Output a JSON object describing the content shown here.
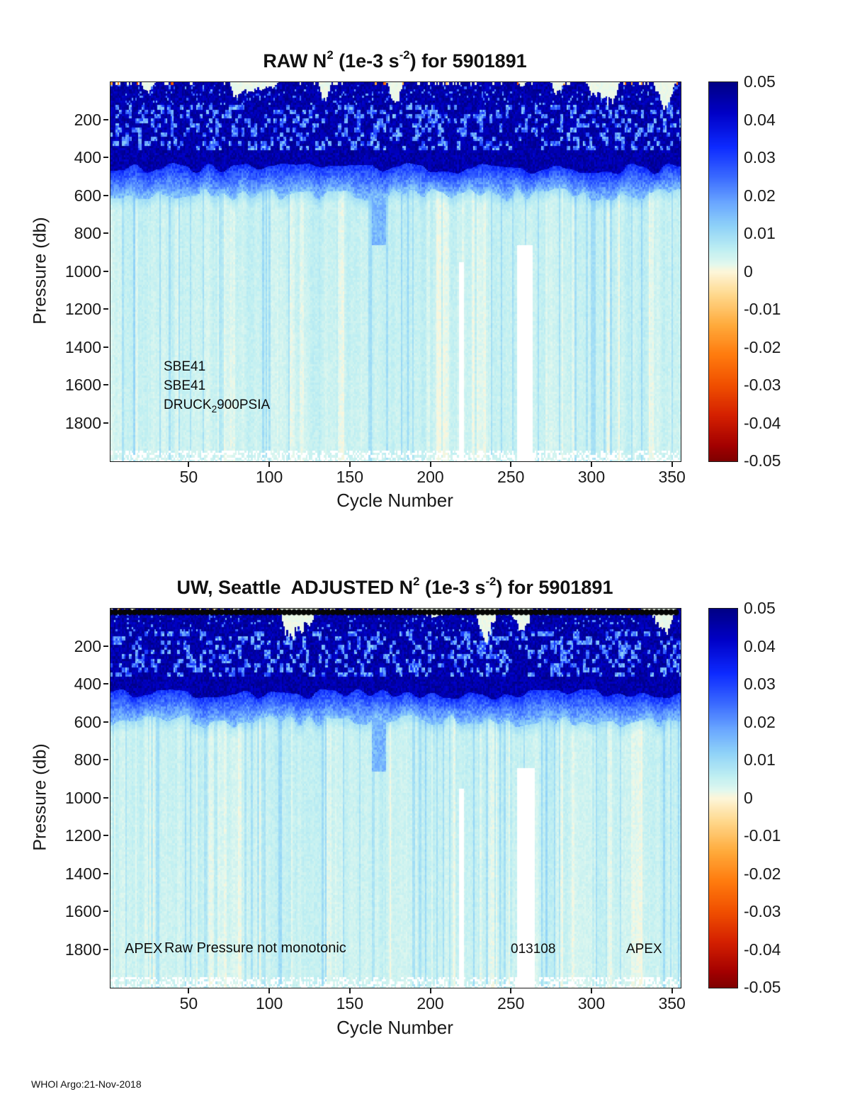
{
  "footer": "WHOI Argo:21-Nov-2018",
  "charts": [
    {
      "title": {
        "pre": "RAW N",
        "sup1": "2",
        "mid": " (1e-3 s",
        "sup2": "-2",
        "post": ") for 5901891"
      },
      "xlabel": "Cycle Number",
      "ylabel": "Pressure (db)",
      "annotations": {
        "sensor1": "SBE41",
        "sensor2": "SBE41",
        "druck_pre": "DRUCK",
        "druck_sub": "2",
        "druck_post": "900PSIA"
      }
    },
    {
      "title": {
        "pre": "UW, Seattle  ADJUSTED N",
        "sup1": "2",
        "mid": " (1e-3 s",
        "sup2": "-2",
        "post": ") for 5901891"
      },
      "xlabel": "Cycle Number",
      "ylabel": "Pressure (db)",
      "annotations": {
        "left": "APEX",
        "center": "Raw Pressure not monotonic",
        "number": "013108",
        "right": "APEX"
      }
    }
  ],
  "chart_data": [
    {
      "type": "heatmap",
      "name": "raw-n2",
      "float_id": "5901891",
      "value_units": "1e-3 s^-2",
      "x": {
        "label": "Cycle Number",
        "min": 1,
        "max": 355,
        "ticks": [
          50,
          100,
          150,
          200,
          250,
          300,
          350
        ]
      },
      "y": {
        "label": "Pressure (db)",
        "min": 0,
        "max": 2000,
        "direction": "down",
        "ticks": [
          200,
          400,
          600,
          800,
          1000,
          1200,
          1400,
          1600,
          1800
        ]
      },
      "colorbar": {
        "min": -0.05,
        "max": 0.05,
        "tick_labels": [
          "0.05",
          "0.04",
          "0.03",
          "0.02",
          "0.01",
          "0",
          "-0.01",
          "-0.02",
          "-0.03",
          "-0.04",
          "-0.05"
        ]
      },
      "colormap_stops": [
        [
          0.05,
          "#000085"
        ],
        [
          0.042,
          "#0000c6"
        ],
        [
          0.033,
          "#0d2aff"
        ],
        [
          0.025,
          "#3a6aff"
        ],
        [
          0.018,
          "#6ba8ff"
        ],
        [
          0.012,
          "#8fd2f8"
        ],
        [
          0.006,
          "#bdeef2"
        ],
        [
          0.002,
          "#e2f8ee"
        ],
        [
          0.0,
          "#fdf6da"
        ],
        [
          -0.006,
          "#ffd98e"
        ],
        [
          -0.014,
          "#ffab3c"
        ],
        [
          -0.022,
          "#ff7b0e"
        ],
        [
          -0.03,
          "#f04f00"
        ],
        [
          -0.038,
          "#d42000"
        ],
        [
          -0.046,
          "#a30000"
        ],
        [
          -0.05,
          "#7f0000"
        ]
      ],
      "bands": [
        {
          "pressure": [
            0,
            120
          ],
          "n2_range": [
            0.038,
            0.05
          ],
          "note": "dark blue, intermittent cream surface patches with rare negative specks"
        },
        {
          "pressure": [
            120,
            360
          ],
          "n2_range": [
            0.012,
            0.05
          ],
          "note": "dark blue with lighter speckled streaks"
        },
        {
          "pressure": [
            360,
            450
          ],
          "n2_range": [
            0.038,
            0.05
          ],
          "note": "darkest near-uniform navy"
        },
        {
          "pressure": [
            450,
            580
          ],
          "n2_range": [
            0.014,
            0.032
          ],
          "note": "medium-to-light blue transition band"
        },
        {
          "pressure": [
            580,
            2000
          ],
          "n2_range": [
            0.0,
            0.008
          ],
          "note": "pale cyan deep layer with vertical streaks and cream columns"
        }
      ],
      "features": {
        "plume": {
          "cycles": [
            163,
            171
          ],
          "pressure": [
            560,
            860
          ],
          "n2": 0.016
        },
        "missing": [
          {
            "cycles": [
              253,
              262
            ],
            "pressure": [
              860,
              2000
            ]
          },
          {
            "cycles": [
              217,
              219
            ],
            "pressure": [
              950,
              2000
            ]
          }
        ]
      },
      "top_markers": false,
      "seed": 7
    },
    {
      "type": "heatmap",
      "name": "adjusted-n2",
      "float_id": "5901891",
      "value_units": "1e-3 s^-2",
      "x": {
        "label": "Cycle Number",
        "min": 1,
        "max": 355,
        "ticks": [
          50,
          100,
          150,
          200,
          250,
          300,
          350
        ]
      },
      "y": {
        "label": "Pressure (db)",
        "min": 0,
        "max": 2000,
        "direction": "down",
        "ticks": [
          200,
          400,
          600,
          800,
          1000,
          1200,
          1400,
          1600,
          1800
        ]
      },
      "colorbar": {
        "min": -0.05,
        "max": 0.05,
        "tick_labels": [
          "0.05",
          "0.04",
          "0.03",
          "0.02",
          "0.01",
          "0",
          "-0.01",
          "-0.02",
          "-0.03",
          "-0.04",
          "-0.05"
        ]
      },
      "colormap_stops": [
        [
          0.05,
          "#000085"
        ],
        [
          0.042,
          "#0000c6"
        ],
        [
          0.033,
          "#0d2aff"
        ],
        [
          0.025,
          "#3a6aff"
        ],
        [
          0.018,
          "#6ba8ff"
        ],
        [
          0.012,
          "#8fd2f8"
        ],
        [
          0.006,
          "#bdeef2"
        ],
        [
          0.002,
          "#e2f8ee"
        ],
        [
          0.0,
          "#fdf6da"
        ],
        [
          -0.006,
          "#ffd98e"
        ],
        [
          -0.014,
          "#ffab3c"
        ],
        [
          -0.022,
          "#ff7b0e"
        ],
        [
          -0.03,
          "#f04f00"
        ],
        [
          -0.038,
          "#d42000"
        ],
        [
          -0.046,
          "#a30000"
        ],
        [
          -0.05,
          "#7f0000"
        ]
      ],
      "bands": [
        {
          "pressure": [
            0,
            120
          ],
          "n2_range": [
            0.038,
            0.05
          ],
          "note": "dark blue, intermittent cream surface patches; black cycle markers along top edge"
        },
        {
          "pressure": [
            120,
            360
          ],
          "n2_range": [
            0.012,
            0.05
          ],
          "note": "dark blue with lighter speckled streaks"
        },
        {
          "pressure": [
            360,
            450
          ],
          "n2_range": [
            0.038,
            0.05
          ],
          "note": "darkest near-uniform navy"
        },
        {
          "pressure": [
            450,
            580
          ],
          "n2_range": [
            0.014,
            0.032
          ],
          "note": "medium-to-light blue transition band"
        },
        {
          "pressure": [
            580,
            2000
          ],
          "n2_range": [
            0.0,
            0.008
          ],
          "note": "pale cyan deep layer with vertical streaks and cream columns"
        }
      ],
      "features": {
        "plume": {
          "cycles": [
            163,
            171
          ],
          "pressure": [
            560,
            860
          ],
          "n2": 0.016
        },
        "missing": [
          {
            "cycles": [
              253,
              263
            ],
            "pressure": [
              840,
              2000
            ]
          },
          {
            "cycles": [
              217,
              219
            ],
            "pressure": [
              950,
              2000
            ]
          }
        ]
      },
      "top_markers": true,
      "seed": 11
    }
  ]
}
